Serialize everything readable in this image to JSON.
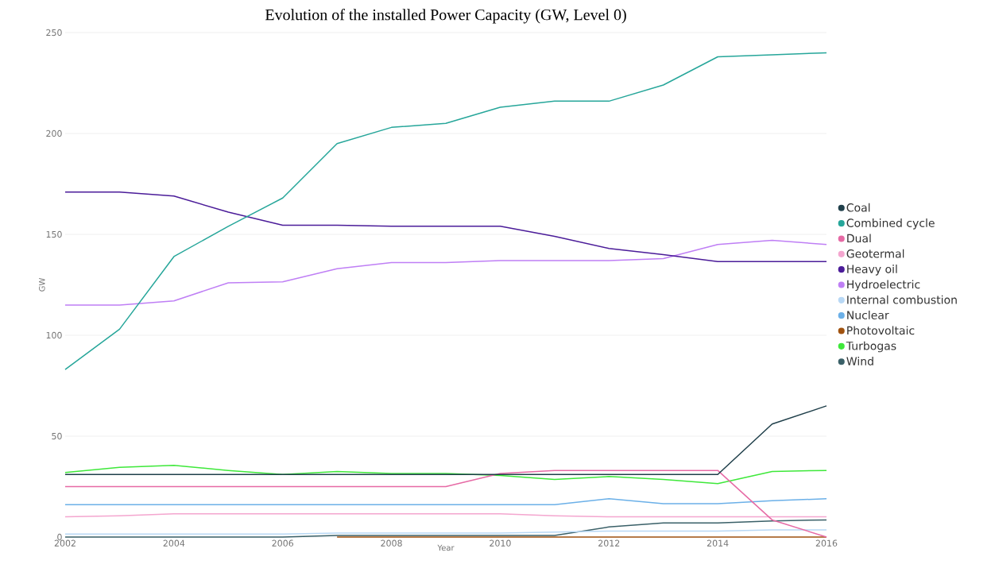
{
  "chart_data": {
    "type": "line",
    "title": "Evolution of the installed Power Capacity (GW, Level 0)",
    "xlabel": "Year",
    "ylabel": "GW",
    "x": [
      2002,
      2003,
      2004,
      2005,
      2006,
      2007,
      2008,
      2009,
      2010,
      2011,
      2012,
      2013,
      2014,
      2015,
      2016
    ],
    "xlim": [
      2002,
      2016
    ],
    "xticks": [
      2002,
      2004,
      2006,
      2008,
      2010,
      2012,
      2014,
      2016
    ],
    "ylim": [
      0,
      250
    ],
    "yticks": [
      0,
      50,
      100,
      150,
      200,
      250
    ],
    "grid": "y",
    "legend": "right",
    "series": [
      {
        "name": "Coal",
        "color": "#1f3f4a",
        "values": [
          31,
          31,
          31,
          31,
          31,
          31,
          31,
          31,
          31,
          31,
          31,
          31,
          31,
          56,
          65
        ]
      },
      {
        "name": "Combined cycle",
        "color": "#26a69a",
        "values": [
          83,
          103,
          139,
          154,
          168,
          195,
          203,
          205,
          213,
          216,
          216,
          224,
          238,
          239,
          240
        ]
      },
      {
        "name": "Dual",
        "color": "#e66aa5",
        "values": [
          25,
          25,
          25,
          25,
          25,
          25,
          25,
          25,
          31.5,
          33,
          33,
          33,
          33,
          8.5,
          0
        ]
      },
      {
        "name": "Geotermal",
        "color": "#f4a6cf",
        "values": [
          10,
          10.5,
          11.5,
          11.5,
          11.5,
          11.5,
          11.5,
          11.5,
          11.5,
          10.5,
          10,
          10,
          10,
          10,
          10
        ]
      },
      {
        "name": "Heavy oil",
        "color": "#4b1c99",
        "values": [
          171,
          171,
          169,
          161,
          154.5,
          154.5,
          154,
          154,
          154,
          149,
          143,
          140,
          136.5,
          136.5,
          136.5
        ]
      },
      {
        "name": "Hydroelectric",
        "color": "#bf7ff5",
        "values": [
          115,
          115,
          117,
          126,
          126.5,
          133,
          136,
          136,
          137,
          137,
          137,
          138,
          145,
          147,
          145
        ]
      },
      {
        "name": "Internal combustion",
        "color": "#b8d8f5",
        "values": [
          1.5,
          1.5,
          1.5,
          1.5,
          1.5,
          2,
          2,
          2,
          2,
          2.5,
          3,
          3,
          3,
          3.5,
          3.5
        ]
      },
      {
        "name": "Nuclear",
        "color": "#6bb0e8",
        "values": [
          16,
          16,
          16,
          16,
          16,
          16,
          16,
          16,
          16,
          16,
          19,
          16.5,
          16.5,
          18,
          19
        ]
      },
      {
        "name": "Photovoltaic",
        "color": "#a0520f",
        "values": [
          null,
          null,
          null,
          null,
          null,
          0,
          0,
          0,
          0,
          0,
          0,
          0,
          0,
          0,
          0
        ]
      },
      {
        "name": "Turbogas",
        "color": "#3ee83a",
        "values": [
          32,
          34.5,
          35.5,
          33,
          31,
          32.5,
          31.5,
          31.5,
          30.5,
          28.5,
          30,
          28.5,
          26.5,
          32.5,
          33
        ]
      },
      {
        "name": "Wind",
        "color": "#3a6068",
        "values": [
          0,
          0,
          0,
          0,
          0,
          0.8,
          0.8,
          0.8,
          0.8,
          0.8,
          5,
          7,
          7,
          8,
          8.5
        ]
      }
    ]
  }
}
